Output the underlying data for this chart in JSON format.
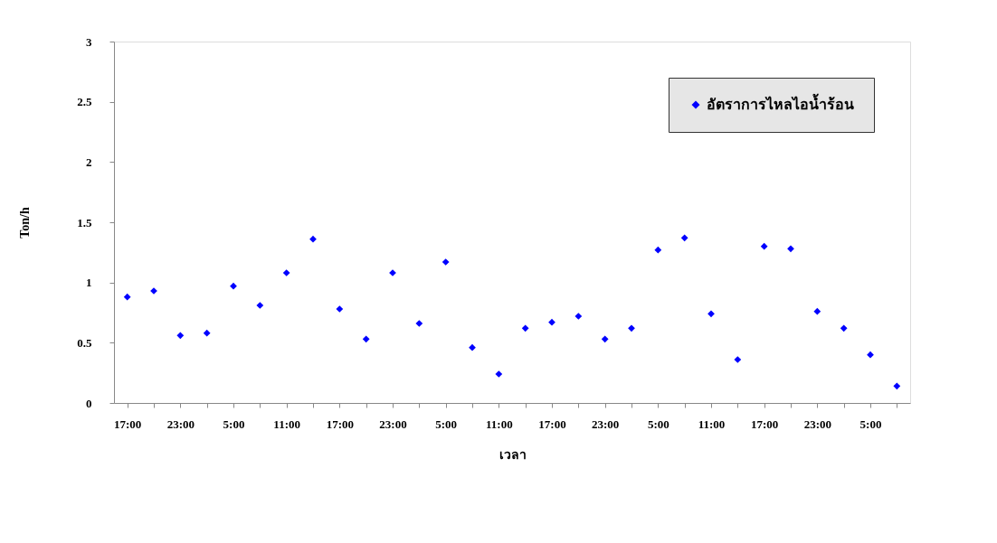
{
  "chart_data": {
    "type": "scatter",
    "xlabel": "เวลา",
    "ylabel": "Ton/h",
    "categories": [
      "17:00",
      null,
      "23:00",
      null,
      "5:00",
      null,
      "11:00",
      null,
      "17:00",
      null,
      "23:00",
      null,
      "5:00",
      null,
      "11:00",
      null,
      "17:00",
      null,
      "23:00",
      null,
      "5:00",
      null,
      "11:00",
      null,
      "17:00",
      null,
      "23:00",
      null,
      "5:00",
      null
    ],
    "series": [
      {
        "name": "อัตราการไหลไอน้ำร้อน",
        "color": "#0000ff",
        "values": [
          0.88,
          0.93,
          0.56,
          0.58,
          0.97,
          0.81,
          1.08,
          1.36,
          0.78,
          0.53,
          1.08,
          0.66,
          1.17,
          0.46,
          0.24,
          0.62,
          0.67,
          0.72,
          0.53,
          0.62,
          1.27,
          1.37,
          0.74,
          0.36,
          1.3,
          1.28,
          0.76,
          0.62,
          0.4,
          0.14
        ]
      }
    ],
    "ylim": [
      0,
      3
    ],
    "yticks": [
      0,
      0.5,
      1,
      1.5,
      2,
      2.5,
      3
    ],
    "grid": false,
    "legend": "top right",
    "marker": "diamond"
  }
}
